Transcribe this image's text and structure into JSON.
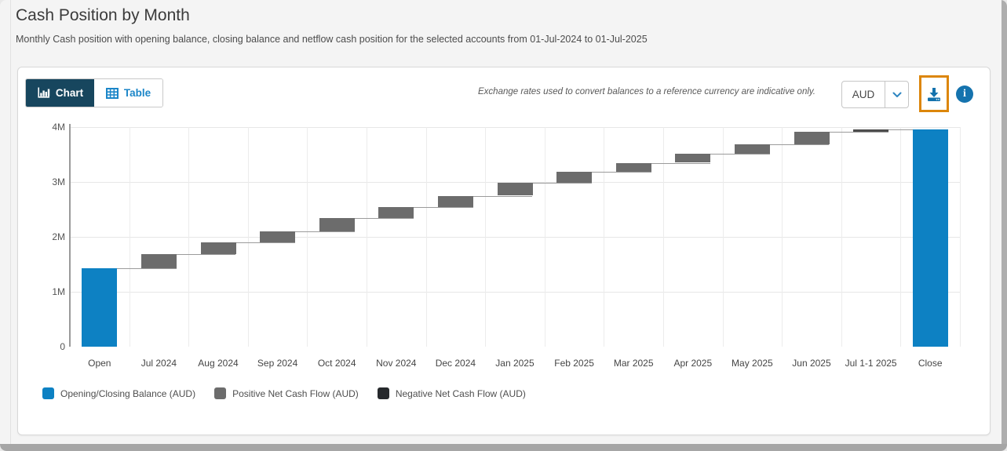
{
  "header": {
    "title": "Cash Position by Month",
    "subtitle": "Monthly Cash position with opening balance, closing balance and netflow cash position for the selected accounts from 01-Jul-2024 to 01-Jul-2025"
  },
  "toolbar": {
    "view_toggle": [
      {
        "label": "Chart",
        "icon": "bar-chart-icon",
        "active": true
      },
      {
        "label": "Table",
        "icon": "table-icon",
        "active": false
      }
    ],
    "exchange_note": "Exchange rates used to convert balances to a reference currency are indicative only.",
    "currency_select": {
      "value": "AUD",
      "icon": "chevron-down-icon"
    },
    "download_button": {
      "icon": "download-icon",
      "highlighted": true,
      "highlight_color": "#dc860b"
    },
    "info_button": {
      "icon": "info-icon",
      "glyph": "i"
    }
  },
  "chart_data": {
    "type": "bar",
    "variant": "waterfall",
    "unit": "millions AUD",
    "ylim": [
      0,
      4
    ],
    "grid": true,
    "yticks": [
      {
        "value": 0,
        "label": "0"
      },
      {
        "value": 1,
        "label": "1M"
      },
      {
        "value": 2,
        "label": "2M"
      },
      {
        "value": 3,
        "label": "3M"
      },
      {
        "value": 4,
        "label": "4M"
      }
    ],
    "categories": [
      "Open",
      "Jul 2024",
      "Aug 2024",
      "Sep 2024",
      "Oct 2024",
      "Nov 2024",
      "Dec 2024",
      "Jan 2025",
      "Feb 2025",
      "Mar 2025",
      "Apr 2025",
      "May 2025",
      "Jun 2025",
      "Jul 1-1 2025",
      "Close"
    ],
    "points": [
      {
        "label": "Open",
        "start": 0,
        "end": 1.43,
        "kind": "balance"
      },
      {
        "label": "Jul 2024",
        "start": 1.43,
        "end": 1.69,
        "kind": "positive"
      },
      {
        "label": "Aug 2024",
        "start": 1.69,
        "end": 1.9,
        "kind": "positive"
      },
      {
        "label": "Sep 2024",
        "start": 1.9,
        "end": 2.1,
        "kind": "positive"
      },
      {
        "label": "Oct 2024",
        "start": 2.1,
        "end": 2.35,
        "kind": "positive"
      },
      {
        "label": "Nov 2024",
        "start": 2.35,
        "end": 2.55,
        "kind": "positive"
      },
      {
        "label": "Dec 2024",
        "start": 2.55,
        "end": 2.75,
        "kind": "positive"
      },
      {
        "label": "Jan 2025",
        "start": 2.75,
        "end": 2.98,
        "kind": "positive"
      },
      {
        "label": "Feb 2025",
        "start": 2.98,
        "end": 3.18,
        "kind": "positive"
      },
      {
        "label": "Mar 2025",
        "start": 3.18,
        "end": 3.35,
        "kind": "positive"
      },
      {
        "label": "Apr 2025",
        "start": 3.35,
        "end": 3.52,
        "kind": "positive"
      },
      {
        "label": "May 2025",
        "start": 3.52,
        "end": 3.68,
        "kind": "positive"
      },
      {
        "label": "Jun 2025",
        "start": 3.68,
        "end": 3.92,
        "kind": "positive"
      },
      {
        "label": "Jul 1-1 2025",
        "start": 3.92,
        "end": 3.96,
        "kind": "positive",
        "color": "#4d4d4d"
      },
      {
        "label": "Close",
        "start": 0,
        "end": 3.96,
        "kind": "balance"
      }
    ],
    "colors": {
      "balance": "#0d81c3",
      "positive": "#6c6c6c",
      "negative": "#26292c",
      "connector": "#9b9b9b"
    }
  },
  "legend": {
    "items": [
      {
        "label": "Opening/Closing Balance (AUD)",
        "color": "#0d81c3"
      },
      {
        "label": "Positive Net Cash Flow (AUD)",
        "color": "#6c6c6c"
      },
      {
        "label": "Negative Net Cash Flow (AUD)",
        "color": "#26292c"
      }
    ]
  }
}
